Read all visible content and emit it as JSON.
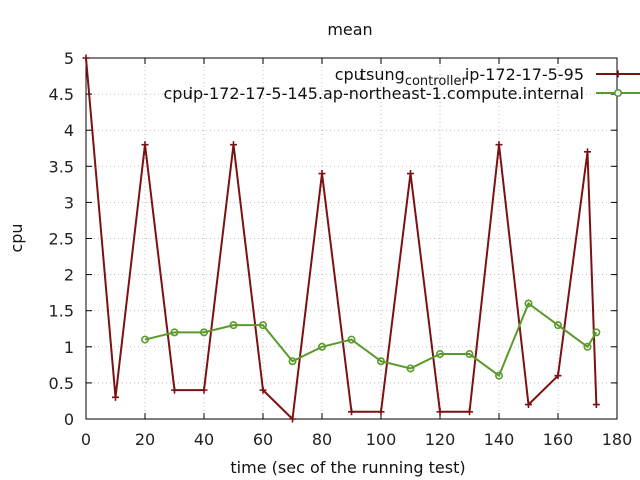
{
  "chart_data": {
    "type": "line",
    "title": "mean",
    "xlabel": "time (sec of the running test)",
    "ylabel": "cpu",
    "xlim": [
      0,
      180
    ],
    "ylim": [
      0,
      5
    ],
    "xticks": [
      0,
      20,
      40,
      60,
      80,
      100,
      120,
      140,
      160,
      180
    ],
    "yticks": [
      0,
      0.5,
      1,
      1.5,
      2,
      2.5,
      3,
      3.5,
      4,
      4.5,
      5
    ],
    "xtick_labels": [
      "0",
      "20",
      "40",
      "60",
      "80",
      "100",
      "120",
      "140",
      "160",
      "180"
    ],
    "ytick_labels": [
      "0",
      "0.5",
      "1",
      "1.5",
      "2",
      "2.5",
      "3",
      "3.5",
      "4",
      "4.5",
      "5"
    ],
    "grid": true,
    "legend_position": "top-right",
    "series": [
      {
        "name": "cpu_tsung_controller_ip-172-17-5-95",
        "legend_parts": [
          "cpu",
          "tsung",
          "controller",
          "ip-172-17-5-95"
        ],
        "color": "#7b1212",
        "marker": "plus",
        "x": [
          0,
          10,
          20,
          30,
          40,
          50,
          60,
          70,
          80,
          90,
          100,
          110,
          120,
          130,
          140,
          150,
          160,
          170,
          173
        ],
        "y": [
          5.0,
          0.3,
          3.8,
          0.4,
          0.4,
          3.8,
          0.4,
          0.0,
          3.4,
          0.1,
          0.1,
          3.4,
          0.1,
          0.1,
          3.8,
          0.2,
          0.6,
          3.7,
          0.2
        ]
      },
      {
        "name": "cpu_ip-172-17-5-145.ap-northeast-1.compute.internal",
        "legend_parts": [
          "cpu",
          "ip-172-17-5-145.ap-northeast-1.compute.internal"
        ],
        "color": "#5a9a2a",
        "marker": "circle",
        "x": [
          20,
          30,
          40,
          50,
          60,
          70,
          80,
          90,
          100,
          110,
          120,
          130,
          140,
          150,
          160,
          170,
          173
        ],
        "y": [
          1.1,
          1.2,
          1.2,
          1.3,
          1.3,
          0.8,
          1.0,
          1.1,
          0.8,
          0.7,
          0.9,
          0.9,
          0.6,
          1.6,
          1.3,
          1.0,
          1.2
        ]
      }
    ]
  }
}
